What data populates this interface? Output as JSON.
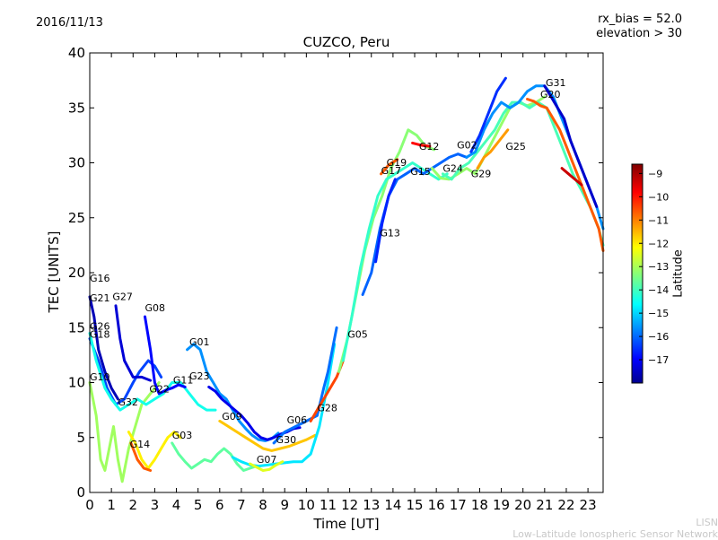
{
  "header": {
    "date": "2016/11/13",
    "rx_bias": "rx_bias = 52.0",
    "elevation": "elevation > 30"
  },
  "footer": {
    "credit_line1": "LISN",
    "credit_line2": "Low-Latitude Ionospheric Sensor Network"
  },
  "colorbar": {
    "label": "Latitude",
    "ticks": [
      -9,
      -10,
      -11,
      -12,
      -13,
      -14,
      -15,
      -16,
      -17
    ],
    "range": [
      -18,
      -8.6
    ],
    "colormap": "jet",
    "tick_labels": [
      "−9",
      "−10",
      "−11",
      "−12",
      "−13",
      "−14",
      "−15",
      "−16",
      "−17"
    ]
  },
  "chart_data": {
    "type": "line",
    "title": "CUZCO, Peru",
    "xlabel": "Time [UT]",
    "ylabel": "TEC [UNITS]",
    "xlim": [
      0,
      23.7
    ],
    "ylim": [
      0,
      40
    ],
    "xticks": [
      0,
      1,
      2,
      3,
      4,
      5,
      6,
      7,
      8,
      9,
      10,
      11,
      12,
      13,
      14,
      15,
      16,
      17,
      18,
      19,
      20,
      21,
      22,
      23
    ],
    "yticks": [
      0,
      5,
      10,
      15,
      20,
      25,
      30,
      35,
      40
    ],
    "grid": false,
    "satellite_labels": [
      {
        "name": "G16",
        "x": 0.0,
        "y": 19.2
      },
      {
        "name": "G21",
        "x": 0.0,
        "y": 17.4
      },
      {
        "name": "G27",
        "x": 1.05,
        "y": 17.5
      },
      {
        "name": "G08",
        "x": 2.55,
        "y": 16.5
      },
      {
        "name": "G26",
        "x": 0.0,
        "y": 14.8
      },
      {
        "name": "G18",
        "x": 0.0,
        "y": 14.1
      },
      {
        "name": "G01",
        "x": 4.6,
        "y": 13.4
      },
      {
        "name": "G10",
        "x": 0.0,
        "y": 10.2
      },
      {
        "name": "G23",
        "x": 4.6,
        "y": 10.3
      },
      {
        "name": "G11",
        "x": 3.85,
        "y": 9.9
      },
      {
        "name": "G22",
        "x": 2.75,
        "y": 9.1
      },
      {
        "name": "G32",
        "x": 1.3,
        "y": 7.9
      },
      {
        "name": "G09",
        "x": 6.1,
        "y": 6.6
      },
      {
        "name": "G06",
        "x": 9.1,
        "y": 6.3
      },
      {
        "name": "G28",
        "x": 10.5,
        "y": 7.4
      },
      {
        "name": "G03",
        "x": 3.8,
        "y": 4.9
      },
      {
        "name": "G14",
        "x": 1.85,
        "y": 4.1
      },
      {
        "name": "G30",
        "x": 8.6,
        "y": 4.5
      },
      {
        "name": "G07",
        "x": 7.7,
        "y": 2.7
      },
      {
        "name": "G05",
        "x": 11.9,
        "y": 14.1
      },
      {
        "name": "G13",
        "x": 13.4,
        "y": 23.3
      },
      {
        "name": "G17",
        "x": 13.45,
        "y": 29.0
      },
      {
        "name": "G19",
        "x": 13.7,
        "y": 29.7
      },
      {
        "name": "G15",
        "x": 14.8,
        "y": 28.9
      },
      {
        "name": "G12",
        "x": 15.2,
        "y": 31.2
      },
      {
        "name": "G24",
        "x": 16.3,
        "y": 29.2
      },
      {
        "name": "G02",
        "x": 16.95,
        "y": 31.3
      },
      {
        "name": "G29",
        "x": 17.6,
        "y": 28.7
      },
      {
        "name": "G25",
        "x": 19.2,
        "y": 31.2
      },
      {
        "name": "G20",
        "x": 20.8,
        "y": 35.9
      },
      {
        "name": "G31",
        "x": 21.05,
        "y": 37.0
      }
    ],
    "series": [
      {
        "lat": -16.2,
        "x": [
          0,
          0.4,
          0.8,
          1.2,
          1.6,
          2,
          2.3,
          2.7,
          3,
          3.3
        ],
        "values": [
          14,
          12,
          9.5,
          8,
          8.5,
          10,
          11,
          12,
          11.5,
          10.5
        ]
      },
      {
        "lat": -13.0,
        "x": [
          0,
          0.3,
          0.5,
          0.7,
          0.9,
          1.1,
          1.3,
          1.5,
          1.8,
          2.1,
          2.4,
          2.8,
          3.2
        ],
        "values": [
          10,
          7,
          3,
          2,
          4,
          6,
          3,
          1,
          4,
          6,
          8,
          9,
          10
        ]
      },
      {
        "lat": -14.3,
        "x": [
          0,
          0.3,
          0.7,
          1,
          1.4,
          1.8,
          2.2,
          2.6,
          3,
          3.4,
          3.8,
          4.2,
          4.6,
          5,
          5.4,
          5.8
        ],
        "values": [
          14.5,
          12,
          9.5,
          8.5,
          7.5,
          8,
          8.5,
          8,
          8.5,
          9,
          10,
          10,
          9,
          8,
          7.5,
          7.5
        ]
      },
      {
        "lat": -17.5,
        "x": [
          0,
          0.2,
          0.4,
          0.7,
          1,
          1.3
        ],
        "values": [
          17.8,
          16,
          13,
          11,
          9.5,
          8.5
        ]
      },
      {
        "lat": -17.2,
        "x": [
          1.2,
          1.4,
          1.6,
          2,
          2.4,
          2.8
        ],
        "values": [
          17,
          14,
          12,
          10.5,
          10.5,
          10.2
        ]
      },
      {
        "lat": -16.8,
        "x": [
          2.55,
          2.8,
          3,
          3.2,
          3.5,
          3.8,
          4.1,
          4.4
        ],
        "values": [
          16,
          13,
          10,
          9,
          9.3,
          9.5,
          9.8,
          9.6
        ]
      },
      {
        "lat": -15.5,
        "x": [
          4.5,
          4.8,
          5.1,
          5.4,
          5.7,
          6,
          6.3,
          6.6,
          6.9,
          7.2,
          7.5,
          7.8,
          8.1,
          8.4,
          8.7
        ],
        "values": [
          13,
          13.5,
          13,
          11,
          10,
          9,
          8.5,
          7.5,
          6.5,
          5.8,
          5.2,
          4.8,
          4.7,
          4.9,
          5.4
        ]
      },
      {
        "lat": -17.0,
        "x": [
          5.5,
          5.8,
          6.1,
          6.4,
          6.7,
          7,
          7.3,
          7.6,
          7.9,
          8.2,
          8.5,
          8.8,
          9.1,
          9.4,
          9.7
        ],
        "values": [
          9.6,
          9.2,
          8.5,
          8,
          7.5,
          7,
          6.3,
          5.5,
          5,
          4.8,
          5,
          5.3,
          5.5,
          5.8,
          5.9
        ]
      },
      {
        "lat": -12.0,
        "x": [
          1.8,
          2.1,
          2.4,
          2.7,
          3,
          3.3,
          3.6,
          3.9,
          4.2
        ],
        "values": [
          5.5,
          4.5,
          3,
          2.2,
          3,
          4,
          5,
          5.5,
          5
        ]
      },
      {
        "lat": -10.6,
        "x": [
          1.9,
          2.2,
          2.5,
          2.8
        ],
        "values": [
          4.5,
          3,
          2.2,
          2
        ]
      },
      {
        "lat": -13.6,
        "x": [
          3.8,
          4.1,
          4.4,
          4.7,
          5,
          5.3,
          5.6,
          5.9,
          6.2,
          6.5,
          6.8,
          7.1,
          7.4,
          7.7
        ],
        "values": [
          4.5,
          3.5,
          2.8,
          2.2,
          2.6,
          3,
          2.8,
          3.5,
          4,
          3.5,
          2.6,
          2,
          2.2,
          2.4
        ]
      },
      {
        "lat": -11.6,
        "x": [
          6,
          6.4,
          6.8,
          7.2,
          7.6,
          8,
          8.4,
          8.8,
          9.2,
          9.6,
          10,
          10.4
        ],
        "values": [
          6.5,
          6,
          5.5,
          5,
          4.5,
          4,
          3.8,
          4,
          4.2,
          4.5,
          4.8,
          5.2
        ]
      },
      {
        "lat": -14.7,
        "x": [
          6.6,
          7,
          7.4,
          7.8,
          8.2,
          8.6,
          9,
          9.4,
          9.8,
          10.2,
          10.6,
          11,
          11.3
        ],
        "values": [
          3.2,
          2.8,
          2.5,
          2.4,
          2.5,
          2.6,
          2.7,
          2.8,
          2.8,
          3.5,
          6,
          10,
          13.5
        ]
      },
      {
        "lat": -12.4,
        "x": [
          7.4,
          7.7,
          8,
          8.3,
          8.6,
          8.9
        ],
        "values": [
          2.6,
          2.3,
          2,
          2.1,
          2.5,
          2.8
        ]
      },
      {
        "lat": -15.8,
        "x": [
          8.5,
          9,
          9.5,
          10,
          10.5,
          10.8,
          11,
          11.2,
          11.4
        ],
        "values": [
          4.5,
          5.5,
          6,
          6.5,
          7,
          9.5,
          11,
          13,
          15
        ]
      },
      {
        "lat": -10.4,
        "x": [
          10.2,
          10.5,
          10.8,
          11.1,
          11.4,
          11.7
        ],
        "values": [
          6.5,
          7.5,
          8.5,
          9.5,
          10.5,
          12
        ]
      },
      {
        "lat": -13.2,
        "x": [
          11.5,
          11.9,
          12.3,
          12.7,
          13.1,
          13.5,
          13.9,
          14.3,
          14.7,
          15.1,
          15.5,
          15.9
        ],
        "values": [
          11,
          14,
          18,
          22,
          25,
          27,
          29.5,
          31,
          33,
          32.5,
          31.5,
          31.2
        ]
      },
      {
        "lat": -14.0,
        "x": [
          11.7,
          12.1,
          12.5,
          12.9,
          13.3,
          13.7,
          14.1,
          14.5,
          14.9,
          15.3,
          15.7,
          16.1,
          16.5
        ],
        "values": [
          12,
          16,
          20.5,
          24,
          27,
          28.5,
          29,
          29.5,
          30,
          29.5,
          29,
          28.5,
          29
        ]
      },
      {
        "lat": -15.9,
        "x": [
          12.6,
          13,
          13.4,
          13.8,
          14.2,
          14.6,
          15,
          15.4,
          15.8,
          16.2,
          16.6,
          17,
          17.4
        ],
        "values": [
          18,
          20,
          24,
          27,
          28.5,
          29,
          29.5,
          29,
          29.5,
          30,
          30.5,
          30.8,
          30.5
        ]
      },
      {
        "lat": -16.5,
        "x": [
          13.2,
          13.5,
          13.8,
          14.1
        ],
        "values": [
          21,
          24.5,
          27,
          28.5
        ]
      },
      {
        "lat": -10.6,
        "x": [
          13.45,
          13.8,
          14.2
        ],
        "values": [
          29,
          29.8,
          30.3
        ]
      },
      {
        "lat": -9.8,
        "x": [
          14.9,
          15.3,
          15.7
        ],
        "values": [
          31.8,
          31.6,
          31.5
        ]
      },
      {
        "lat": -13.1,
        "x": [
          15.8,
          16.2,
          16.6,
          17,
          17.4,
          17.8,
          18.2,
          18.6,
          19,
          19.4,
          19.8,
          20.2,
          20.6,
          21
        ],
        "values": [
          29.5,
          28.6,
          28.5,
          29,
          29.5,
          29,
          30.5,
          32,
          33.5,
          35,
          35.5,
          35.2,
          35.5,
          36
        ]
      },
      {
        "lat": -13.8,
        "x": [
          16.3,
          16.7,
          17.1,
          17.5,
          17.9,
          18.3,
          18.7,
          19.1,
          19.5,
          19.9,
          20.3,
          20.7,
          21.1,
          21.5,
          21.9,
          22.3,
          22.7,
          23.1,
          23.5,
          23.7
        ],
        "values": [
          29,
          28.5,
          29.5,
          30,
          31,
          32,
          33,
          34.5,
          35.5,
          35.5,
          35,
          35.5,
          35,
          33,
          31,
          29,
          27.5,
          26,
          24,
          22.5
        ]
      },
      {
        "lat": -15.5,
        "x": [
          17.4,
          17.8,
          18.2,
          18.6,
          19,
          19.4,
          19.8,
          20.2,
          20.6,
          21,
          21.4,
          21.8,
          22.2,
          22.6,
          23,
          23.4,
          23.7
        ],
        "values": [
          30.5,
          31,
          33,
          34.5,
          35.5,
          35,
          35.5,
          36.5,
          37,
          37,
          36,
          34,
          32,
          30,
          28,
          26,
          24
        ]
      },
      {
        "lat": -16.4,
        "x": [
          17.6,
          18,
          18.4,
          18.8,
          19.2
        ],
        "values": [
          31,
          32.5,
          34.5,
          36.5,
          37.7
        ]
      },
      {
        "lat": -11.2,
        "x": [
          17.9,
          18.2,
          18.5,
          18.9,
          19.3
        ],
        "values": [
          29.5,
          30.5,
          31,
          32,
          33
        ]
      },
      {
        "lat": -10.6,
        "x": [
          20.2,
          20.5,
          20.8,
          21.1,
          21.4,
          21.7,
          22,
          22.3,
          22.7,
          23.1,
          23.5,
          23.7
        ],
        "values": [
          35.8,
          35.6,
          35.2,
          35,
          34,
          33,
          31.5,
          30,
          28,
          26,
          24,
          22
        ]
      },
      {
        "lat": -17.3,
        "x": [
          21,
          21.3,
          21.6,
          21.9,
          22.2,
          22.5,
          22.8,
          23.1,
          23.4
        ],
        "values": [
          37,
          36,
          35,
          34,
          32,
          30.5,
          29,
          27.5,
          26
        ]
      },
      {
        "lat": -9.3,
        "x": [
          21.8,
          22.1,
          22.4,
          22.7
        ],
        "values": [
          29.5,
          29,
          28.5,
          28
        ]
      }
    ]
  }
}
